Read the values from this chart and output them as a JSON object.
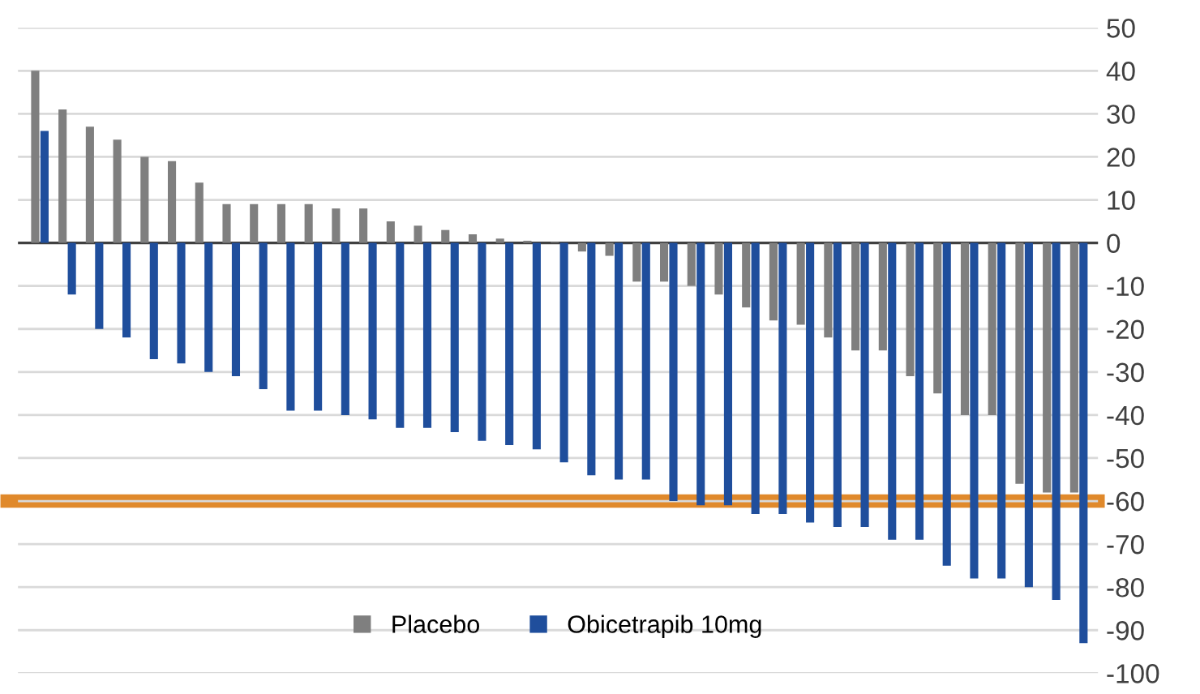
{
  "chart_data": {
    "type": "bar",
    "categories": [
      null,
      null,
      null,
      null,
      null,
      null,
      null,
      null,
      null,
      null,
      null,
      null,
      null,
      null,
      null,
      null,
      null,
      null,
      null,
      null,
      null,
      null,
      null,
      null,
      null,
      null,
      null,
      null,
      null,
      null,
      null,
      null,
      null,
      null,
      null,
      null,
      null,
      null,
      null
    ],
    "series": [
      {
        "name": "Placebo",
        "color": "#7f7f7f",
        "values": [
          40,
          31,
          27,
          24,
          20,
          19,
          14,
          9,
          9,
          9,
          9,
          8,
          8,
          5,
          4,
          3,
          2,
          1,
          0.5,
          0.2,
          -2,
          -3,
          -9,
          -9,
          -10,
          -12,
          -15,
          -18,
          -19,
          -22,
          -25,
          -25,
          -31,
          -35,
          -40,
          -40,
          -56,
          -58,
          -58
        ]
      },
      {
        "name": "Obicetrapib 10mg",
        "color": "#1f4e9c",
        "values": [
          26,
          -12,
          -20,
          -22,
          -27,
          -28,
          -30,
          -31,
          -34,
          -39,
          -39,
          -40,
          -41,
          -43,
          -43,
          -44,
          -46,
          -47,
          -48,
          -51,
          -54,
          -55,
          -55,
          -60,
          -61,
          -61,
          -63,
          -63,
          -65,
          -66,
          -66,
          -69,
          -69,
          -75,
          -78,
          -78,
          -80,
          -83,
          -93
        ]
      }
    ],
    "ylim": [
      -100,
      50
    ],
    "yticks": [
      -100,
      -90,
      -80,
      -70,
      -60,
      -50,
      -40,
      -30,
      -20,
      -10,
      0,
      10,
      20,
      30,
      40,
      50
    ],
    "grid": "y",
    "legend": "bottom",
    "ref_lines": [
      {
        "axis": "y",
        "value": -60,
        "color": "#e0892b"
      }
    ]
  }
}
